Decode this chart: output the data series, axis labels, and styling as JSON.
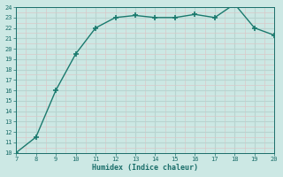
{
  "x": [
    7,
    8,
    9,
    10,
    11,
    12,
    13,
    14,
    15,
    16,
    17,
    18,
    19,
    20
  ],
  "y": [
    10,
    11.5,
    16,
    19.5,
    22,
    23,
    23.2,
    23,
    23,
    23.3,
    23,
    24.3,
    22,
    21.3
  ],
  "xlim": [
    7,
    20
  ],
  "ylim": [
    10,
    24
  ],
  "yticks": [
    10,
    11,
    12,
    13,
    14,
    15,
    16,
    17,
    18,
    19,
    20,
    21,
    22,
    23,
    24
  ],
  "xticks": [
    7,
    8,
    9,
    10,
    11,
    12,
    13,
    14,
    15,
    16,
    17,
    18,
    19,
    20
  ],
  "xlabel": "Humidex (Indice chaleur)",
  "line_color": "#1a7a6e",
  "marker": "+",
  "marker_size": 5,
  "bg_color": "#cce8e4",
  "major_grid_color": "#b8d4d0",
  "minor_grid_color": "#d9c8c8",
  "tick_color": "#1a6e6a",
  "label_color": "#1a6e6a"
}
